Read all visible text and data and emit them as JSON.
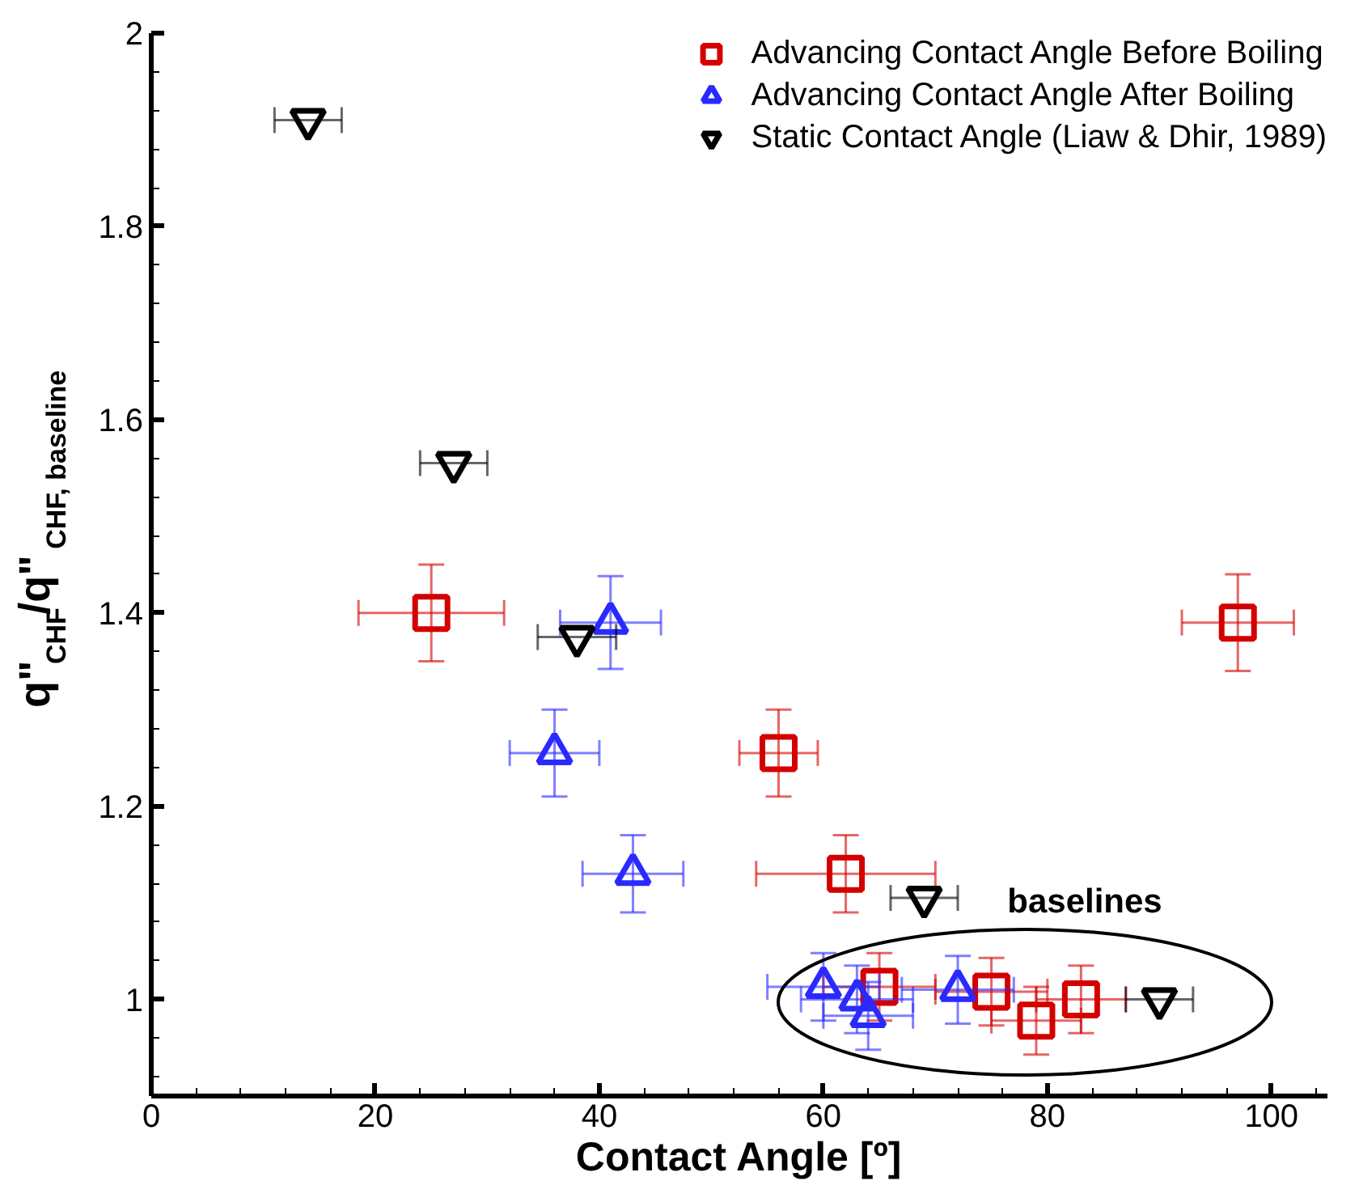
{
  "chart_data": {
    "type": "scatter",
    "xlabel": "Contact Angle [º]",
    "ylabel": "q\"$_{CHF}$/q\"$_{CHF, baseline}$",
    "series": [
      {
        "name": "Advancing Contact Angle Before Boiling",
        "color": "#d40000",
        "marker": "square",
        "x": [
          25,
          56,
          62,
          97,
          65,
          75,
          79,
          83
        ],
        "values": [
          1.4,
          1.255,
          1.13,
          1.39,
          1.013,
          1.008,
          0.978,
          1.0
        ],
        "errors": [
          0.05,
          0.045,
          0.04,
          0.05,
          0.035,
          0.035,
          0.035,
          0.035
        ],
        "xerrors": [
          6.5,
          3.5,
          8,
          5,
          5,
          5,
          4,
          4
        ]
      },
      {
        "name": "Advancing Contact Angle After Boiling",
        "color": "#2a2aff",
        "marker": "triangle",
        "x": [
          36,
          41,
          43,
          60,
          63,
          64,
          72
        ],
        "values": [
          1.255,
          1.39,
          1.13,
          1.013,
          1.0,
          0.983,
          1.01
        ],
        "errors": [
          0.045,
          0.048,
          0.04,
          0.035,
          0.035,
          0.035,
          0.035
        ],
        "xerrors": [
          4,
          4.5,
          4.5,
          5,
          5,
          4,
          5
        ]
      },
      {
        "name": "Static Contact Angle (Liaw & Dhir, 1989)",
        "color": "#000000",
        "x": [
          14,
          27,
          38,
          69,
          90
        ],
        "values": [
          1.91,
          1.555,
          1.375,
          1.105,
          1.0
        ],
        "xerrors": [
          3,
          3,
          3.5,
          3,
          3
        ]
      }
    ],
    "annotations": [
      "baselines"
    ],
    "xlim": [
      0,
      105
    ],
    "ylim": [
      0.9,
      2
    ],
    "xticks": [
      0,
      20,
      40,
      60,
      80,
      100
    ],
    "yticks": [
      1,
      1.2,
      1.4,
      1.6,
      1.8,
      2
    ],
    "grid": false,
    "legend": "top right"
  }
}
